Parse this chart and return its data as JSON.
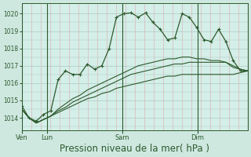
{
  "background_color": "#cee8e0",
  "plot_bg": "#d4eee8",
  "grid_color_v": "#ddb8b8",
  "grid_color_h": "#a8ccc0",
  "line_color": "#2d5a2d",
  "title": "Pression niveau de la mer( hPa )",
  "title_fontsize": 8.5,
  "ylim": [
    1013.3,
    1020.6
  ],
  "yticks": [
    1014,
    1015,
    1016,
    1017,
    1018,
    1019,
    1020
  ],
  "day_x": [
    0,
    8,
    32,
    56,
    72
  ],
  "day_labels": [
    "Ven",
    "Lun",
    "Sam",
    "Dim"
  ],
  "n_points": 73,
  "series0": [
    1014.7,
    1014.0,
    1013.8,
    1014.2,
    1014.4,
    1016.2,
    1016.7,
    1016.5,
    1016.5,
    1017.1,
    1016.8,
    1017.0,
    1018.0,
    1019.8,
    1020.0,
    1020.05,
    1019.8,
    1020.05,
    1019.5,
    1019.1,
    1018.5,
    1018.6,
    1020.0,
    1019.8,
    1019.2,
    1018.5,
    1018.4,
    1019.1,
    1018.4,
    1017.3,
    1016.7,
    1016.7
  ],
  "series1": [
    1014.5,
    1014.0,
    1013.7,
    1013.9,
    1014.1,
    1014.3,
    1014.5,
    1014.7,
    1014.9,
    1015.1,
    1015.2,
    1015.4,
    1015.5,
    1015.7,
    1015.8,
    1015.9,
    1016.0,
    1016.1,
    1016.2,
    1016.3,
    1016.4,
    1016.4,
    1016.5,
    1016.5,
    1016.5,
    1016.5,
    1016.5,
    1016.5,
    1016.5,
    1016.5,
    1016.6,
    1016.7
  ],
  "series2": [
    1014.5,
    1014.0,
    1013.7,
    1013.9,
    1014.1,
    1014.4,
    1014.6,
    1014.9,
    1015.1,
    1015.3,
    1015.5,
    1015.7,
    1015.9,
    1016.1,
    1016.3,
    1016.5,
    1016.6,
    1016.7,
    1016.8,
    1016.9,
    1017.0,
    1017.1,
    1017.1,
    1017.2,
    1017.2,
    1017.2,
    1017.2,
    1017.2,
    1017.2,
    1016.9,
    1016.8,
    1016.7
  ],
  "series3": [
    1014.5,
    1014.0,
    1013.7,
    1013.9,
    1014.1,
    1014.5,
    1014.8,
    1015.1,
    1015.3,
    1015.6,
    1015.8,
    1016.0,
    1016.2,
    1016.4,
    1016.6,
    1016.8,
    1017.0,
    1017.1,
    1017.2,
    1017.3,
    1017.4,
    1017.4,
    1017.5,
    1017.5,
    1017.4,
    1017.4,
    1017.3,
    1017.3,
    1017.2,
    1017.0,
    1016.8,
    1016.7
  ]
}
